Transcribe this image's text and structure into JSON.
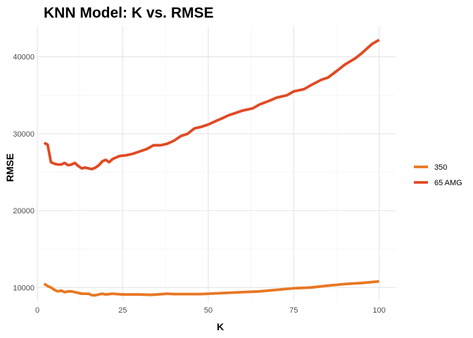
{
  "chart_data": {
    "type": "line",
    "title": "KNN Model: K vs. RMSE",
    "xlabel": "K",
    "ylabel": "RMSE",
    "xlim": [
      0,
      105
    ],
    "ylim": [
      8200,
      44000
    ],
    "xticks": [
      0,
      25,
      50,
      75,
      100
    ],
    "xtick_labels": [
      "0",
      "25",
      "50",
      "75",
      "100"
    ],
    "yticks": [
      10000,
      20000,
      30000,
      40000
    ],
    "ytick_labels": [
      "10000",
      "20000",
      "30000",
      "40000"
    ],
    "grid": true,
    "legend_position": "right",
    "series": [
      {
        "name": "350",
        "color": "#E87722",
        "x": [
          2,
          3,
          4,
          5,
          6,
          7,
          8,
          9,
          10,
          11,
          12,
          13,
          14,
          15,
          16,
          17,
          18,
          19,
          20,
          22,
          25,
          28,
          30,
          33,
          35,
          38,
          40,
          43,
          45,
          48,
          50,
          55,
          60,
          65,
          70,
          75,
          80,
          85,
          90,
          95,
          100
        ],
        "values": [
          10500,
          10200,
          10000,
          9700,
          9500,
          9600,
          9400,
          9500,
          9500,
          9400,
          9300,
          9200,
          9200,
          9200,
          9000,
          9000,
          9100,
          9200,
          9100,
          9200,
          9100,
          9100,
          9100,
          9050,
          9100,
          9200,
          9150,
          9150,
          9150,
          9150,
          9200,
          9300,
          9400,
          9500,
          9700,
          9900,
          10000,
          10250,
          10450,
          10600,
          10800
        ]
      },
      {
        "name": "65 AMG",
        "color": "#E04A24",
        "x": [
          2,
          3,
          4,
          5,
          6,
          7,
          8,
          9,
          10,
          11,
          12,
          13,
          14,
          15,
          16,
          17,
          18,
          19,
          20,
          21,
          22,
          23,
          24,
          26,
          28,
          30,
          32,
          34,
          36,
          38,
          40,
          42,
          44,
          46,
          48,
          50,
          52,
          54,
          56,
          58,
          60,
          63,
          65,
          68,
          70,
          73,
          75,
          78,
          80,
          83,
          85,
          88,
          90,
          93,
          95,
          98,
          100
        ],
        "values": [
          28800,
          28600,
          26300,
          26100,
          26000,
          26000,
          26200,
          25900,
          26000,
          26200,
          25800,
          25500,
          25600,
          25500,
          25400,
          25600,
          25900,
          26400,
          26600,
          26300,
          26700,
          26900,
          27100,
          27200,
          27400,
          27700,
          28000,
          28500,
          28500,
          28700,
          29100,
          29700,
          30000,
          30700,
          30900,
          31200,
          31600,
          32000,
          32400,
          32700,
          33000,
          33300,
          33800,
          34300,
          34700,
          35000,
          35500,
          35800,
          36300,
          37000,
          37300,
          38300,
          39000,
          39800,
          40500,
          41700,
          42200
        ]
      }
    ]
  }
}
